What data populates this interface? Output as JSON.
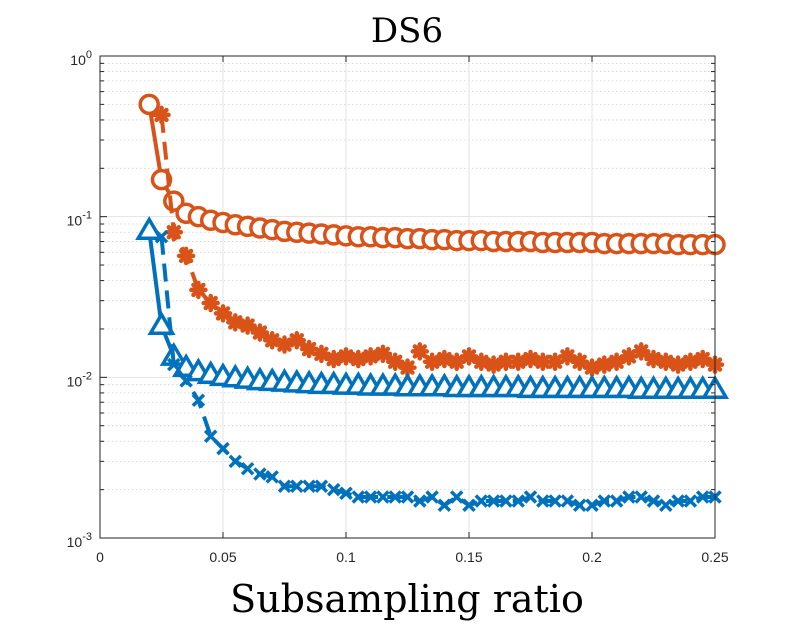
{
  "chart_data": {
    "type": "line",
    "title": "DS6",
    "xlabel": "Subsampling ratio",
    "ylabel": "",
    "yscale": "log",
    "xlim": [
      0,
      0.25
    ],
    "ylim": [
      0.001,
      1
    ],
    "grid": true,
    "xticks": [
      0,
      0.05,
      0.1,
      0.15,
      0.2,
      0.25
    ],
    "xtick_labels": [
      "0",
      "0.05",
      "0.1",
      "0.15",
      "0.2",
      "0.25"
    ],
    "yticks": [
      0.001,
      0.01,
      0.1,
      1
    ],
    "ytick_labels": [
      {
        "base": "10",
        "exp": "-3"
      },
      {
        "base": "10",
        "exp": "-2"
      },
      {
        "base": "10",
        "exp": "-1"
      },
      {
        "base": "10",
        "exp": "0"
      }
    ],
    "x": [
      0.02,
      0.025,
      0.03,
      0.035,
      0.04,
      0.045,
      0.05,
      0.055,
      0.06,
      0.065,
      0.07,
      0.075,
      0.08,
      0.085,
      0.09,
      0.095,
      0.1,
      0.105,
      0.11,
      0.115,
      0.12,
      0.125,
      0.13,
      0.135,
      0.14,
      0.145,
      0.15,
      0.155,
      0.16,
      0.165,
      0.17,
      0.175,
      0.18,
      0.185,
      0.19,
      0.195,
      0.2,
      0.205,
      0.21,
      0.215,
      0.22,
      0.225,
      0.23,
      0.235,
      0.24,
      0.245,
      0.25
    ],
    "series": [
      {
        "name": "orange-circle-solid",
        "color": "#D95319",
        "marker": "circle",
        "dash": "solid",
        "values": [
          0.5,
          0.17,
          0.125,
          0.105,
          0.1,
          0.095,
          0.092,
          0.089,
          0.087,
          0.085,
          0.083,
          0.081,
          0.08,
          0.079,
          0.078,
          0.077,
          0.076,
          0.075,
          0.075,
          0.074,
          0.074,
          0.073,
          0.073,
          0.072,
          0.072,
          0.071,
          0.071,
          0.071,
          0.07,
          0.07,
          0.07,
          0.07,
          0.069,
          0.069,
          0.069,
          0.069,
          0.069,
          0.068,
          0.068,
          0.068,
          0.068,
          0.068,
          0.068,
          0.067,
          0.067,
          0.067,
          0.067
        ]
      },
      {
        "name": "orange-star-dashed",
        "color": "#D95319",
        "marker": "star",
        "dash": "dashed",
        "values": [
          null,
          0.43,
          0.08,
          0.057,
          0.035,
          0.029,
          0.025,
          0.022,
          0.021,
          0.019,
          0.017,
          0.016,
          0.017,
          0.015,
          0.014,
          0.013,
          0.0135,
          0.013,
          0.0135,
          0.014,
          0.0125,
          0.0115,
          0.0145,
          0.0125,
          0.013,
          0.0125,
          0.0135,
          0.0125,
          0.012,
          0.0125,
          0.0125,
          0.013,
          0.0125,
          0.0125,
          0.0135,
          0.0125,
          0.0115,
          0.012,
          0.0125,
          0.0135,
          0.0145,
          0.013,
          0.0125,
          0.012,
          0.0125,
          0.013,
          0.012
        ]
      },
      {
        "name": "blue-triangle-solid",
        "color": "#0072BD",
        "marker": "triangle",
        "dash": "solid",
        "values": [
          0.082,
          0.021,
          0.0135,
          0.0115,
          0.0108,
          0.0104,
          0.0101,
          0.0099,
          0.0097,
          0.0095,
          0.0094,
          0.0093,
          0.0092,
          0.0091,
          0.009,
          0.009,
          0.0089,
          0.0089,
          0.0088,
          0.0088,
          0.0088,
          0.0087,
          0.0087,
          0.0087,
          0.0087,
          0.0086,
          0.0086,
          0.0086,
          0.0086,
          0.0086,
          0.0086,
          0.0085,
          0.0085,
          0.0085,
          0.0085,
          0.0085,
          0.0085,
          0.0085,
          0.0085,
          0.0085,
          0.0084,
          0.0084,
          0.0084,
          0.0084,
          0.0084,
          0.0084,
          0.0084
        ]
      },
      {
        "name": "blue-cross-dashed",
        "color": "#0072BD",
        "marker": "cross",
        "dash": "dashed",
        "values": [
          null,
          0.075,
          0.012,
          0.0095,
          0.0072,
          0.0043,
          0.0036,
          0.003,
          0.0027,
          0.0025,
          0.0024,
          0.0021,
          0.0021,
          0.0021,
          0.0021,
          0.002,
          0.0019,
          0.0018,
          0.0018,
          0.0018,
          0.0018,
          0.0018,
          0.0017,
          0.0018,
          0.0016,
          0.0018,
          0.0016,
          0.0017,
          0.0017,
          0.0017,
          0.0017,
          0.0018,
          0.0017,
          0.0017,
          0.0017,
          0.0016,
          0.0016,
          0.0017,
          0.0017,
          0.0018,
          0.0018,
          0.0017,
          0.0016,
          0.0017,
          0.0017,
          0.0018,
          0.0018
        ]
      }
    ]
  }
}
